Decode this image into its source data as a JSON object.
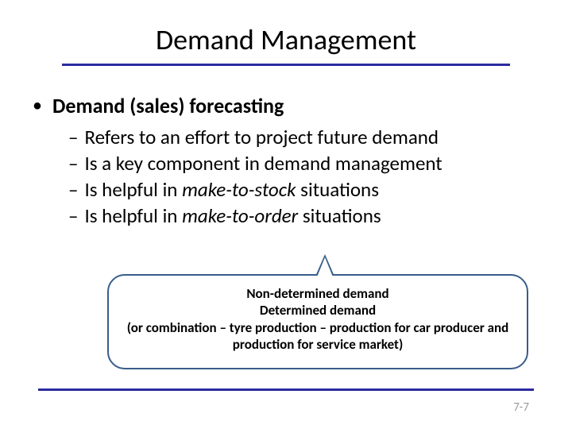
{
  "title": "Demand Management",
  "bullet_main": "Demand (sales) forecasting",
  "sub1": "Refers to an effort to project future demand",
  "sub2": "Is a key component in demand management",
  "sub3_pre": "Is helpful in ",
  "sub3_em": "make-to-stock",
  "sub3_post": " situations",
  "sub4_pre": "Is helpful in ",
  "sub4_em": "make-to-order",
  "sub4_post": " situations",
  "callout_line1": "Non-determined demand",
  "callout_line2": "Determined demand",
  "callout_line3": "(or combination – tyre production – production for car producer and production for service market)",
  "pagenum": "7-7",
  "colors": {
    "rule": "#2b2ba0",
    "callout_border": "#385d8a",
    "pagenum": "#9a9a9a"
  }
}
